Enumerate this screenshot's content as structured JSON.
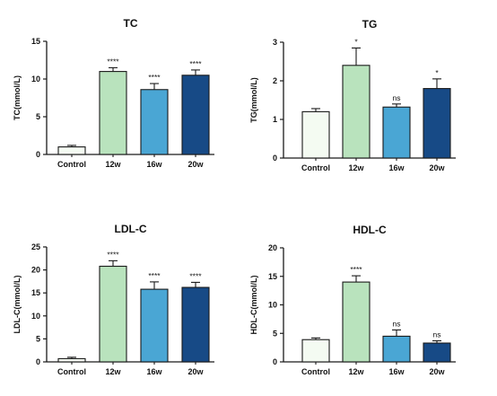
{
  "figure": {
    "colors": {
      "Control": "#f4fbf2",
      "12w": "#b9e3bd",
      "16w": "#4aa6d4",
      "20w": "#174a86",
      "axis": "#1a1a1a",
      "text": "#111111"
    }
  },
  "chart_data": [
    {
      "type": "bar",
      "title": "TC",
      "ylabel": "TC(mmol/L)",
      "categories": [
        "Control",
        "12w",
        "16w",
        "20w"
      ],
      "values": [
        1.0,
        11.0,
        8.6,
        10.5
      ],
      "errors": [
        0.2,
        0.5,
        0.8,
        0.7
      ],
      "significance": [
        "",
        "****",
        "****",
        "****"
      ],
      "ylim": [
        0,
        15
      ],
      "yticks": [
        "0",
        "5",
        "10",
        "15"
      ]
    },
    {
      "type": "bar",
      "title": "TG",
      "ylabel": "TG(mmol/L)",
      "categories": [
        "Control",
        "12w",
        "16w",
        "20w"
      ],
      "values": [
        1.2,
        2.4,
        1.32,
        1.8
      ],
      "errors": [
        0.08,
        0.45,
        0.08,
        0.25
      ],
      "significance": [
        "",
        "*",
        "ns",
        "*"
      ],
      "ylim": [
        0,
        3
      ],
      "yticks": [
        "0",
        "1",
        "2",
        "3"
      ]
    },
    {
      "type": "bar",
      "title": "LDL-C",
      "ylabel": "LDL-C(mmol/L)",
      "categories": [
        "Control",
        "12w",
        "16w",
        "20w"
      ],
      "values": [
        0.7,
        20.8,
        15.8,
        16.2
      ],
      "errors": [
        0.3,
        1.2,
        1.6,
        1.1
      ],
      "significance": [
        "",
        "****",
        "****",
        "****"
      ],
      "ylim": [
        0,
        25
      ],
      "yticks": [
        "0",
        "5",
        "10",
        "15",
        "20",
        "25"
      ]
    },
    {
      "type": "bar",
      "title": "HDL-C",
      "ylabel": "HDL-C(mmol/L)",
      "categories": [
        "Control",
        "12w",
        "16w",
        "20w"
      ],
      "values": [
        3.9,
        14.0,
        4.5,
        3.3
      ],
      "errors": [
        0.3,
        1.1,
        1.1,
        0.4
      ],
      "significance": [
        "",
        "****",
        "ns",
        "ns"
      ],
      "ylim": [
        0,
        20
      ],
      "yticks": [
        "0",
        "5",
        "10",
        "15",
        "20"
      ]
    }
  ]
}
